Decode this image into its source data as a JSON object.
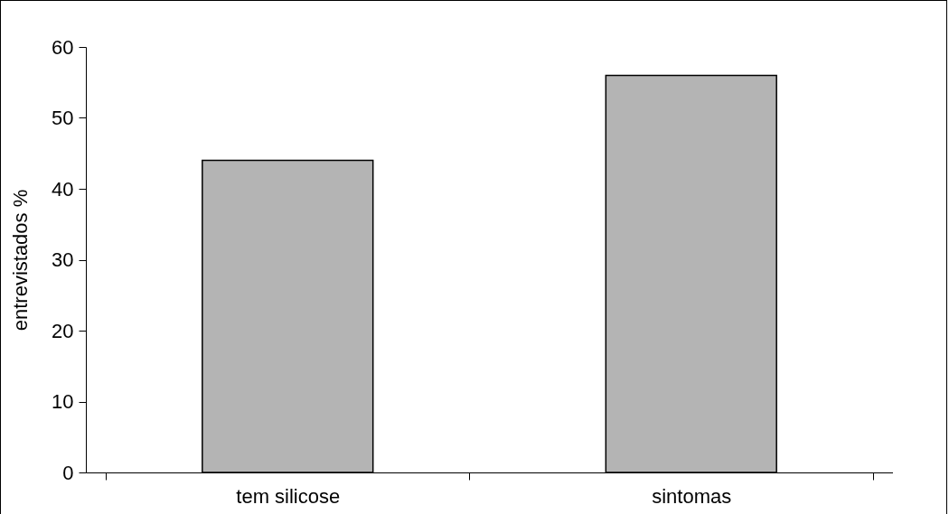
{
  "chart_data": {
    "type": "bar",
    "ylabel": "entrevistados %",
    "categories": [
      "tem silicose",
      "sintomas"
    ],
    "values": [
      44,
      56
    ],
    "color": "#b4b4b4",
    "ylim": [
      0,
      60
    ],
    "yticks": [
      0,
      10,
      20,
      30,
      40,
      50,
      60
    ],
    "grid": false
  }
}
